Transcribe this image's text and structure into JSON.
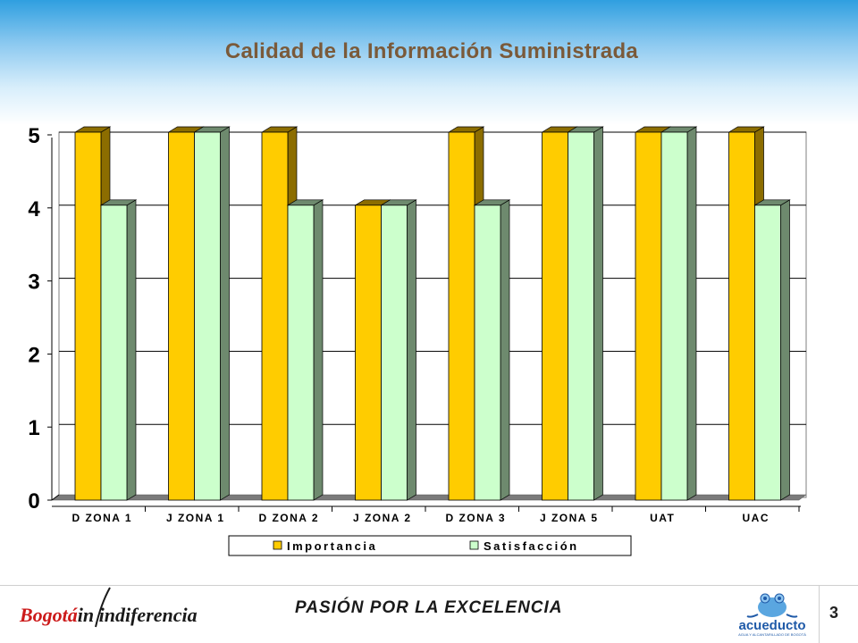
{
  "slide": {
    "title": "Calidad de la Información Suministrada",
    "footer_text": "PASIÓN POR LA EXCELENCIA",
    "page_number": "3",
    "brand_left_red": "Bogotá",
    "brand_left_rest": "in indiferencia",
    "logo_right": "acueducto",
    "logo_right_sub": "AGUA Y ALCANTARILLADO DE BOGOTÁ"
  },
  "colors": {
    "importancia": "#ffcc00",
    "importancia_side": "#8c6d00",
    "satisfaccion": "#ccffcc",
    "satisfaccion_side": "#6e8a6e",
    "floor": "#7a7a7a",
    "title": "#7a5a3a"
  },
  "chart_data": {
    "type": "bar",
    "categories": [
      "D ZONA 1",
      "J ZONA 1",
      "D ZONA 2",
      "J ZONA 2",
      "D ZONA 3",
      "J ZONA 5",
      "UAT",
      "UAC"
    ],
    "series": [
      {
        "name": "Importancia",
        "values": [
          5,
          5,
          5,
          4,
          5,
          5,
          5,
          5
        ]
      },
      {
        "name": "Satisfacción",
        "values": [
          4,
          5,
          4,
          4,
          4,
          5,
          5,
          4
        ]
      }
    ],
    "yticks": [
      "0",
      "1",
      "2",
      "3",
      "4",
      "5"
    ],
    "ylim": [
      0,
      5
    ],
    "grid": true,
    "legend_position": "bottom"
  }
}
